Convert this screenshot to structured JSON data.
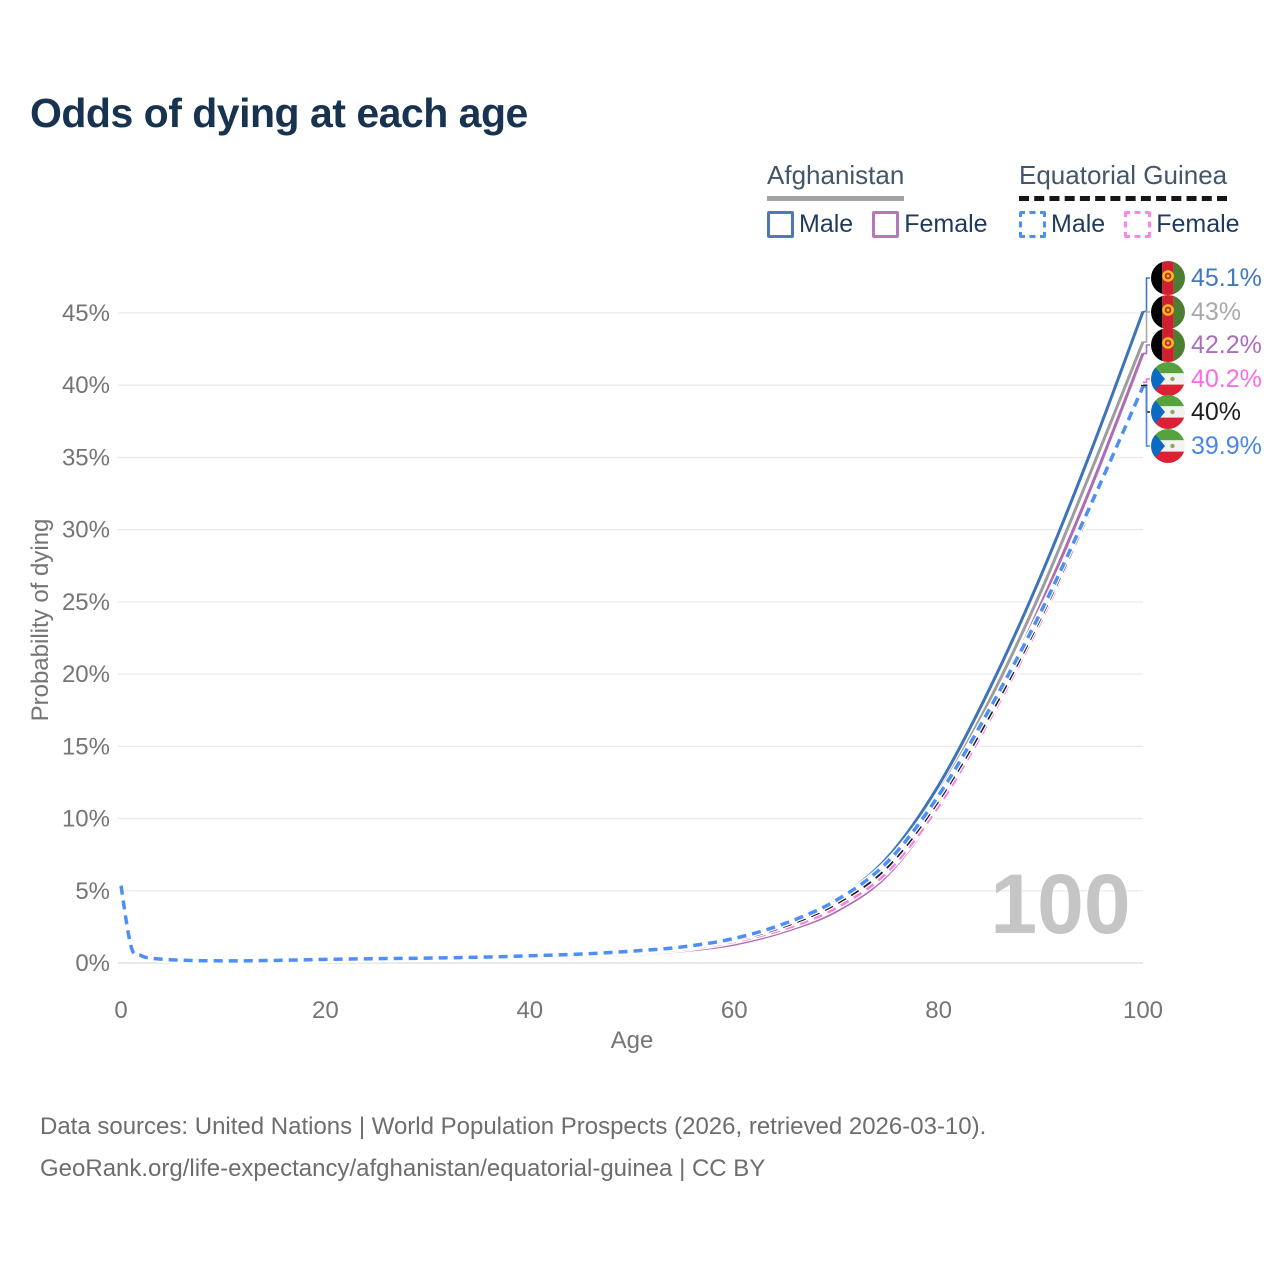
{
  "title": "Odds of dying at each age",
  "watermark": "100",
  "legend": {
    "groups": [
      {
        "name": "Afghanistan",
        "underline_style": "solid",
        "underline_color": "#a3a3a3",
        "items": [
          {
            "label": "Male",
            "color": "#4e79b7",
            "dash": false
          },
          {
            "label": "Female",
            "color": "#b679b6",
            "dash": false
          }
        ]
      },
      {
        "name": "Equatorial Guinea",
        "underline_style": "dashed",
        "underline_color": "#161616",
        "items": [
          {
            "label": "Male",
            "color": "#4d8df5",
            "dash": true
          },
          {
            "label": "Female",
            "color": "#ff85e5",
            "dash": true
          }
        ]
      }
    ]
  },
  "footer": {
    "line1": "Data sources: United Nations | World Population Prospects (2026, retrieved 2026-03-10).",
    "line2": "GeoRank.org/life-expectancy/afghanistan/equatorial-guinea | CC BY"
  },
  "chart_data": {
    "type": "line",
    "title": "Odds of dying at each age",
    "xlabel": "Age",
    "ylabel": "Probability of dying",
    "xlim": [
      0,
      100
    ],
    "ylim": [
      0,
      47
    ],
    "grid": "horizontal",
    "x_ticks": [
      {
        "label": "0",
        "value": 0
      },
      {
        "label": "20",
        "value": 20
      },
      {
        "label": "40",
        "value": 40
      },
      {
        "label": "60",
        "value": 60
      },
      {
        "label": "80",
        "value": 80
      },
      {
        "label": "100",
        "value": 100
      }
    ],
    "y_ticks": [
      {
        "label": "0%",
        "value": 0
      },
      {
        "label": "5%",
        "value": 5
      },
      {
        "label": "10%",
        "value": 10
      },
      {
        "label": "15%",
        "value": 15
      },
      {
        "label": "20%",
        "value": 20
      },
      {
        "label": "25%",
        "value": 25
      },
      {
        "label": "30%",
        "value": 30
      },
      {
        "label": "35%",
        "value": 35
      },
      {
        "label": "40%",
        "value": 40
      },
      {
        "label": "45%",
        "value": 45
      }
    ],
    "x": [
      0,
      1,
      2,
      3,
      5,
      8,
      12,
      16,
      20,
      25,
      30,
      35,
      40,
      45,
      50,
      55,
      60,
      65,
      70,
      75,
      80,
      85,
      90,
      95,
      100
    ],
    "series": [
      {
        "name": "Afghanistan Female",
        "color": "#af6cb4",
        "dash": false,
        "values": [
          4.5,
          0.9,
          0.4,
          0.26,
          0.17,
          0.12,
          0.11,
          0.13,
          0.17,
          0.2,
          0.23,
          0.28,
          0.35,
          0.44,
          0.6,
          0.85,
          1.3,
          2.2,
          3.6,
          6.1,
          10.8,
          17.3,
          24.8,
          33.1,
          42.2
        ]
      },
      {
        "name": "Afghanistan Both sexes",
        "color": "#9d9d9d",
        "dash": false,
        "values": [
          4.7,
          0.95,
          0.42,
          0.28,
          0.18,
          0.13,
          0.12,
          0.15,
          0.2,
          0.24,
          0.27,
          0.32,
          0.4,
          0.5,
          0.68,
          0.95,
          1.45,
          2.45,
          4.0,
          6.9,
          11.8,
          18.2,
          25.7,
          34.2,
          43.0
        ]
      },
      {
        "name": "Afghanistan Male",
        "color": "#3d74b8",
        "dash": false,
        "values": [
          4.9,
          1.0,
          0.45,
          0.3,
          0.2,
          0.14,
          0.13,
          0.17,
          0.22,
          0.27,
          0.3,
          0.36,
          0.44,
          0.56,
          0.75,
          1.05,
          1.6,
          2.7,
          4.4,
          7.3,
          12.3,
          19.0,
          26.8,
          35.6,
          45.1
        ]
      },
      {
        "name": "Equatorial Guinea Female",
        "color": "#fb7ce8",
        "dash": true,
        "values": [
          4.95,
          0.95,
          0.43,
          0.28,
          0.18,
          0.13,
          0.12,
          0.15,
          0.2,
          0.24,
          0.28,
          0.33,
          0.41,
          0.52,
          0.7,
          0.97,
          1.5,
          2.4,
          3.85,
          6.35,
          10.9,
          16.9,
          23.7,
          31.6,
          40.2
        ]
      },
      {
        "name": "Equatorial Guinea Both sexes",
        "color": "#1b1b1b",
        "dash": true,
        "values": [
          5.15,
          1.0,
          0.46,
          0.3,
          0.2,
          0.14,
          0.13,
          0.17,
          0.22,
          0.27,
          0.31,
          0.37,
          0.46,
          0.58,
          0.77,
          1.06,
          1.62,
          2.6,
          4.15,
          6.7,
          11.3,
          17.2,
          24.0,
          31.7,
          40.0
        ]
      },
      {
        "name": "Equatorial Guinea Male",
        "color": "#4d8ef7",
        "dash": true,
        "values": [
          5.35,
          1.1,
          0.5,
          0.33,
          0.22,
          0.16,
          0.15,
          0.19,
          0.25,
          0.3,
          0.34,
          0.4,
          0.5,
          0.62,
          0.82,
          1.12,
          1.7,
          2.75,
          4.35,
          7.0,
          11.6,
          17.6,
          24.3,
          31.9,
          39.9
        ]
      }
    ],
    "end_labels": [
      {
        "text": "45.1%",
        "value": 45.1,
        "color": "#4178be",
        "flag": "afghanistan"
      },
      {
        "text": "43%",
        "value": 43.0,
        "color": "#a9a9a9",
        "flag": "afghanistan"
      },
      {
        "text": "42.2%",
        "value": 42.2,
        "color": "#ad6cbe",
        "flag": "afghanistan"
      },
      {
        "text": "40.2%",
        "value": 40.2,
        "color": "#fb6ce4",
        "flag": "equatorial-guinea"
      },
      {
        "text": "40%",
        "value": 40.0,
        "color": "#1d1d1d",
        "flag": "equatorial-guinea"
      },
      {
        "text": "39.9%",
        "value": 39.9,
        "color": "#4a86e8",
        "flag": "equatorial-guinea"
      }
    ]
  }
}
